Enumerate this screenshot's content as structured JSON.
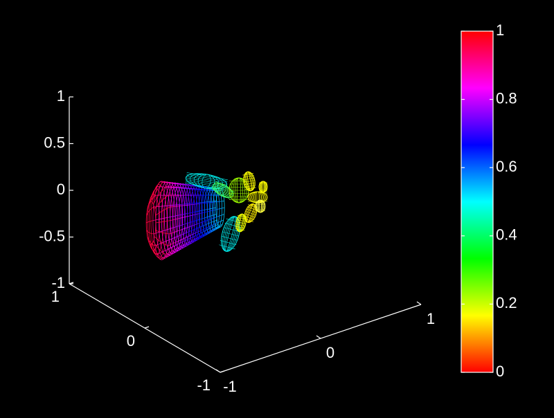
{
  "chart_data": {
    "type": "mesh3d",
    "xticks": [
      -1,
      0,
      1
    ],
    "xlim": [
      -1,
      1
    ],
    "yticks": [
      -1,
      0,
      1
    ],
    "ylim": [
      -1,
      1
    ],
    "zticks": [
      -1,
      -0.5,
      0,
      0.5,
      1
    ],
    "zlim": [
      -1,
      1
    ],
    "colorbar": {
      "clim": [
        0,
        1
      ],
      "ticks": [
        0,
        0.2,
        0.4,
        0.6,
        0.8,
        1
      ],
      "colormap": "hsv"
    }
  }
}
